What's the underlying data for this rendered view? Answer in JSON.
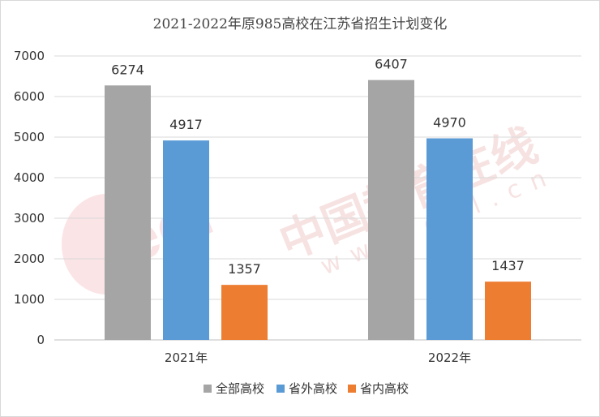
{
  "chart_data": {
    "type": "bar",
    "title": "2021-2022年原985高校在江苏省招生计划变化",
    "xlabel": "",
    "ylabel": "",
    "categories": [
      "2021年",
      "2022年"
    ],
    "series": [
      {
        "name": "全部高校",
        "values": [
          6274,
          6407
        ],
        "color": "#a5a5a5"
      },
      {
        "name": "省外高校",
        "values": [
          4917,
          4970
        ],
        "color": "#5b9bd5"
      },
      {
        "name": "省内高校",
        "values": [
          1357,
          1437
        ],
        "color": "#ed7d31"
      }
    ],
    "ylim": [
      0,
      7000
    ],
    "yticks": [
      0,
      1000,
      2000,
      3000,
      4000,
      5000,
      6000,
      7000
    ],
    "grid": true,
    "legend_position": "bottom",
    "data_labels": true
  },
  "watermark": {
    "brand_text": "中国教育在线",
    "url_text": "www.eol.cn",
    "logo_text": "eol"
  }
}
